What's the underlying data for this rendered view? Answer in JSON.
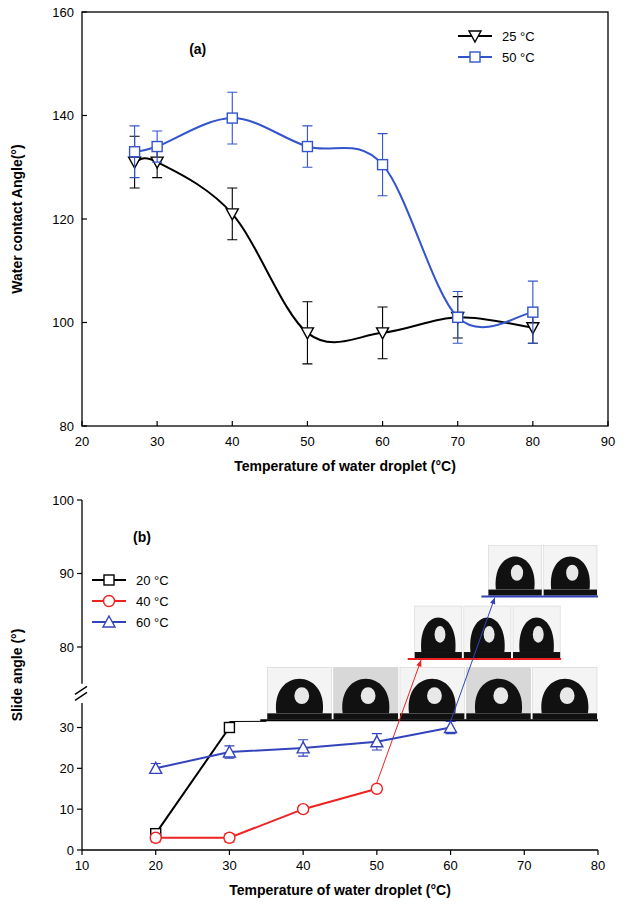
{
  "chart_data": [
    {
      "type": "line",
      "panel": "(a)",
      "x_label": "Temperature of water droplet (°C)",
      "y_label": "Water contact Angle(°)",
      "xlim": [
        20,
        90
      ],
      "xticks": [
        20,
        30,
        40,
        50,
        60,
        70,
        80,
        90
      ],
      "ylim": [
        80,
        160
      ],
      "yticks": [
        80,
        100,
        120,
        140,
        160
      ],
      "legend": "upper-right",
      "line_style": "smooth",
      "series": [
        {
          "name": "25 °C",
          "color": "#000000",
          "marker": "triangle-down",
          "x": [
            27,
            30,
            40,
            50,
            60,
            70,
            80
          ],
          "values": [
            131,
            131,
            121,
            98,
            98,
            101,
            99
          ],
          "errors": [
            5,
            3,
            5,
            6,
            5,
            4,
            3
          ]
        },
        {
          "name": "50 °C",
          "color": "#3355cc",
          "marker": "square",
          "x": [
            27,
            30,
            40,
            50,
            60,
            70,
            80
          ],
          "values": [
            133,
            134,
            139.5,
            134,
            130.5,
            101,
            102
          ],
          "errors": [
            5,
            3,
            5,
            4,
            6,
            5,
            6
          ]
        }
      ]
    },
    {
      "type": "line",
      "panel": "(b)",
      "x_label": "Temperature of water droplet (°C)",
      "y_label": "Slide angle (°)",
      "xlim": [
        10,
        80
      ],
      "xticks": [
        10,
        20,
        30,
        40,
        50,
        60,
        70,
        80
      ],
      "ylim": [
        0,
        100
      ],
      "yticks": [
        0,
        10,
        20,
        30,
        80,
        90,
        100
      ],
      "y_break": [
        36,
        75
      ],
      "legend": "left",
      "line_style": "solid",
      "series": [
        {
          "name": "20 °C",
          "color": "#000000",
          "marker": "square",
          "x": [
            20,
            30
          ],
          "values": [
            4,
            30
          ],
          "errors": [
            1,
            0
          ]
        },
        {
          "name": "40 °C",
          "color": "#ee2222",
          "marker": "circle",
          "x": [
            20,
            30,
            40,
            50
          ],
          "values": [
            3,
            3,
            10,
            15
          ],
          "errors": [
            1,
            1,
            0.8,
            0.8
          ]
        },
        {
          "name": "60 °C",
          "color": "#3344bb",
          "marker": "triangle",
          "x": [
            20,
            30,
            40,
            50,
            60
          ],
          "values": [
            20,
            24,
            25,
            26.5,
            30
          ],
          "errors": [
            1.2,
            1.5,
            2,
            2,
            1.5
          ]
        }
      ]
    }
  ]
}
